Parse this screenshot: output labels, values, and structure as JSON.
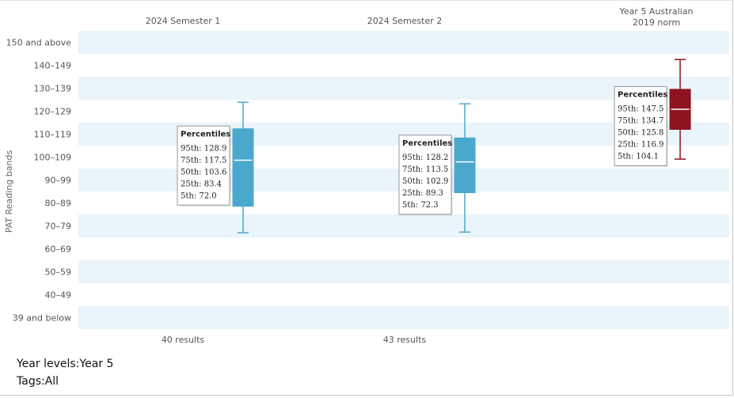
{
  "chart_data": {
    "type": "box",
    "ylabel": "PAT Reading bands",
    "bands": [
      "150 and above",
      "140–149",
      "130–139",
      "120–129",
      "110–119",
      "100–109",
      "90–99",
      "80–89",
      "70–79",
      "60–69",
      "50–59",
      "40–49",
      "39 and below"
    ],
    "series": [
      {
        "name": "2024 Semester 1",
        "color": "#4ba8cd",
        "results_label": "40 results",
        "p95": 128.9,
        "p75": 117.5,
        "p50": 103.6,
        "p25": 83.4,
        "p5": 72.0,
        "tooltip": {
          "title": "Percentiles",
          "lines": [
            "95th: 128.9",
            "75th: 117.5",
            "50th: 103.6",
            "25th: 83.4",
            "5th: 72.0"
          ]
        }
      },
      {
        "name": "2024 Semester 2",
        "color": "#4ba8cd",
        "results_label": "43 results",
        "p95": 128.2,
        "p75": 113.5,
        "p50": 102.9,
        "p25": 89.3,
        "p5": 72.3,
        "tooltip": {
          "title": "Percentiles",
          "lines": [
            "95th: 128.2",
            "75th: 113.5",
            "50th: 102.9",
            "25th: 89.3",
            "5th: 72.3"
          ]
        }
      },
      {
        "name": "Year 5 Australian\n2019 norm",
        "color": "#8c1520",
        "results_label": "",
        "p95": 147.5,
        "p75": 134.7,
        "p50": 125.8,
        "p25": 116.9,
        "p5": 104.1,
        "tooltip": {
          "title": "Percentiles",
          "lines": [
            "95th: 147.5",
            "75th: 134.7",
            "50th: 125.8",
            "25th: 116.9",
            "5th: 104.1"
          ]
        }
      }
    ],
    "band_stripe_color": "#eaf4fb"
  },
  "footer": {
    "year_levels": "Year levels:Year 5",
    "tags": "Tags:All"
  }
}
